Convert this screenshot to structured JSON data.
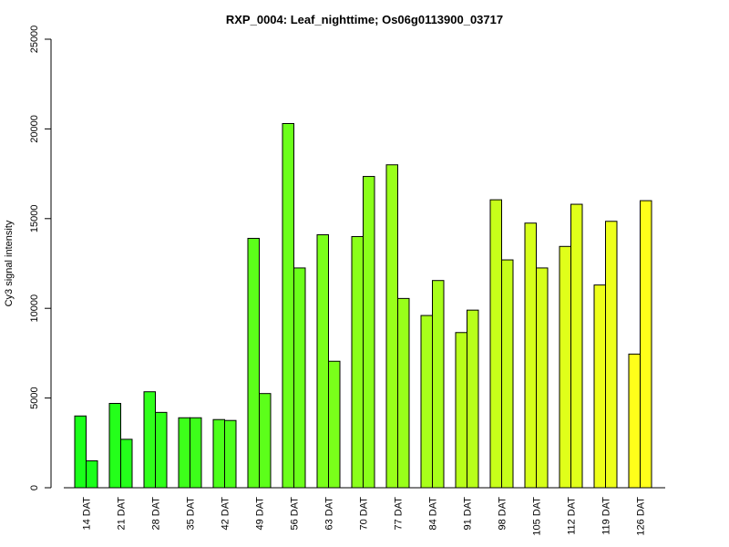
{
  "chart_data": {
    "type": "bar",
    "title": "RXP_0004: Leaf_nighttime; Os06g0113900_03717",
    "xlabel": "",
    "ylabel": "Cy3 signal intensity",
    "ylim": [
      0,
      25000
    ],
    "yticks": [
      0,
      5000,
      10000,
      15000,
      20000,
      25000
    ],
    "categories": [
      "14 DAT",
      "21 DAT",
      "28 DAT",
      "35 DAT",
      "42 DAT",
      "49 DAT",
      "56 DAT",
      "63 DAT",
      "70 DAT",
      "77 DAT",
      "84 DAT",
      "91 DAT",
      "98 DAT",
      "105 DAT",
      "112 DAT",
      "119 DAT",
      "126 DAT"
    ],
    "series": [
      {
        "values": [
          4000,
          4700,
          5350,
          3900,
          3800,
          13900,
          20300,
          14100,
          14000,
          18000,
          9600,
          8650,
          16050,
          14750,
          13450,
          11300,
          7450
        ]
      },
      {
        "values": [
          1500,
          2700,
          4200,
          3900,
          3750,
          5250,
          12250,
          7050,
          17350,
          10550,
          11550,
          9900,
          12700,
          12250,
          15800,
          14850,
          16000
        ]
      }
    ],
    "group_colors": [
      "#1aff1a",
      "#24ff1a",
      "#2fff1a",
      "#3dff1a",
      "#4cff1a",
      "#5cff1a",
      "#6bff1a",
      "#7aff1a",
      "#8aff1a",
      "#99ff1a",
      "#a8ff1a",
      "#b8ff1a",
      "#c7ff1a",
      "#d6ff1a",
      "#e0ff1a",
      "#eeff1a",
      "#ffff1a"
    ],
    "grid": false,
    "legend": "none"
  }
}
